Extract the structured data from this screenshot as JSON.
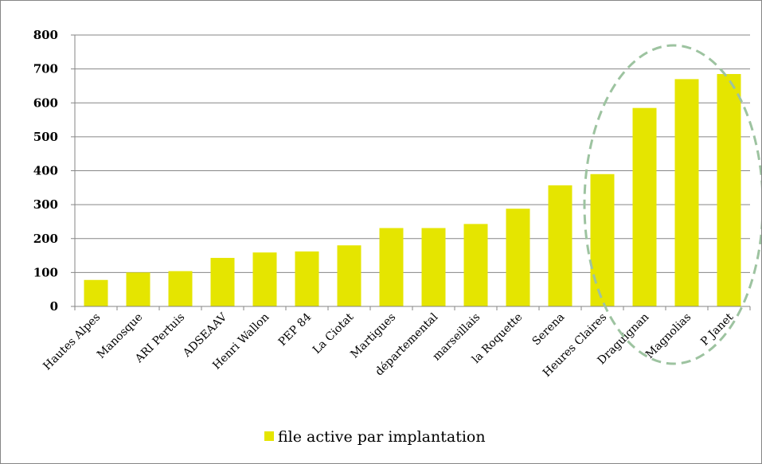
{
  "chart_data": {
    "type": "bar",
    "categories": [
      "Hautes Alpes",
      "Manosque",
      "ARI Pertuis",
      "ADSEAAV",
      "Henri Wallon",
      "PEP 84",
      "La Ciotat",
      "Martigues",
      "départemental",
      "marseillais",
      "la Roquette",
      "Serena",
      "Heures Claires",
      "Draguignan",
      "Magnolias",
      "P Janet"
    ],
    "series": [
      {
        "name": "file active par implantation",
        "values": [
          78,
          100,
          104,
          143,
          159,
          162,
          180,
          231,
          231,
          243,
          288,
          357,
          390,
          585,
          670,
          685
        ]
      }
    ],
    "ylim": [
      0,
      800
    ],
    "yticks": [
      "0",
      "100",
      "200",
      "300",
      "400",
      "500",
      "600",
      "700",
      "800"
    ],
    "grid": true,
    "legend_position": "bottom",
    "annotations": [
      "dashed ellipse highlighting Heures Claires, Draguignan, Magnolias, P Janet"
    ],
    "colors": {
      "bar": "#e5e500",
      "grid": "#868686",
      "ellipse": "#9dc3a0"
    }
  }
}
